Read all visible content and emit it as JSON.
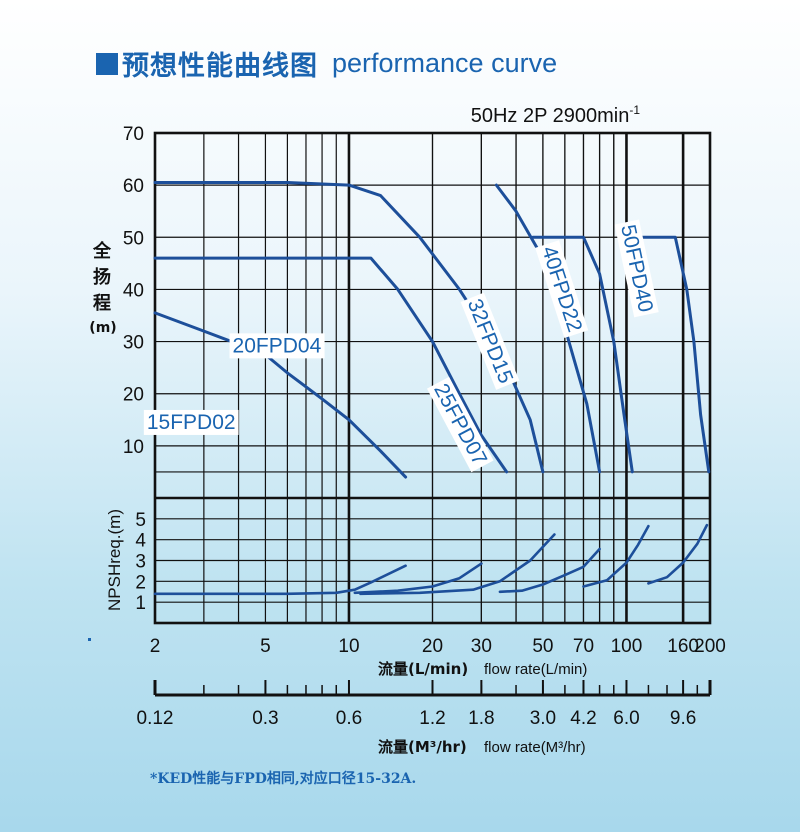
{
  "page": {
    "title_cn": "预想性能曲线图",
    "title_en": "performance curve",
    "footnote": "*KED性能与FPD相同,对应口径15-32A."
  },
  "chart_data": {
    "type": "line",
    "subtitle": "50Hz 2P 2900min",
    "subtitle_sup": "-1",
    "x_scale": "log",
    "xlim": [
      2,
      200
    ],
    "x_ticks": [
      2,
      5,
      10,
      20,
      30,
      50,
      70,
      100,
      160,
      200
    ],
    "xlabel_cn": "流量(L/min)",
    "xlabel_en": "flow rate(L/min)",
    "x2_ticks": [
      {
        "label": "0.12",
        "at": 2
      },
      {
        "label": "0.3",
        "at": 5
      },
      {
        "label": "0.6",
        "at": 10
      },
      {
        "label": "1.2",
        "at": 20
      },
      {
        "label": "1.8",
        "at": 30
      },
      {
        "label": "3.0",
        "at": 50
      },
      {
        "label": "4.2",
        "at": 70
      },
      {
        "label": "6.0",
        "at": 100
      },
      {
        "label": "9.6",
        "at": 160
      }
    ],
    "x2label_cn": "流量(M³/hr)",
    "x2label_en": "flow rate(M³/hr)",
    "head": {
      "ylabel_chars": [
        "全",
        "扬",
        "程"
      ],
      "yunit": "(m)",
      "ylim": [
        0,
        70
      ],
      "y_ticks": [
        10,
        20,
        30,
        40,
        50,
        60,
        70
      ],
      "series": [
        {
          "name": "15FPD02",
          "label_at": [
            2.7,
            14.3
          ],
          "label_rot": 0,
          "points": [
            [
              2,
              35.5
            ],
            [
              3,
              32
            ],
            [
              4,
              29.5
            ],
            [
              5,
              27.5
            ],
            [
              6,
              24
            ],
            [
              8,
              19
            ],
            [
              10,
              15
            ],
            [
              13,
              9
            ],
            [
              16,
              4
            ]
          ]
        },
        {
          "name": "20FPD04",
          "label_at": [
            5.5,
            29
          ],
          "label_rot": 0,
          "points": [
            [
              2,
              46
            ],
            [
              6,
              46
            ],
            [
              10,
              46
            ],
            [
              12,
              46
            ],
            [
              15,
              40
            ],
            [
              20,
              30
            ],
            [
              25,
              20
            ],
            [
              30,
              12
            ],
            [
              37,
              5
            ]
          ]
        },
        {
          "name": "25FPD07",
          "label_at": [
            25,
            14
          ],
          "label_rot": 62,
          "points": [
            [
              2,
              60.5
            ],
            [
              6,
              60.5
            ],
            [
              10,
              60
            ],
            [
              13,
              58
            ],
            [
              18,
              50
            ],
            [
              25,
              40
            ],
            [
              35,
              28
            ],
            [
              45,
              15
            ],
            [
              50,
              5
            ]
          ]
        },
        {
          "name": "32FPD15",
          "label_at": [
            32,
            30
          ],
          "label_rot": 68,
          "points": [
            [
              34,
              60
            ],
            [
              40,
              55
            ],
            [
              50,
              46
            ],
            [
              55,
              40
            ],
            [
              62,
              30
            ],
            [
              72,
              18
            ],
            [
              80,
              5
            ]
          ]
        },
        {
          "name": "40FPD22",
          "label_at": [
            58,
            40
          ],
          "label_rot": 72,
          "points": [
            [
              46,
              50
            ],
            [
              60,
              50
            ],
            [
              70,
              50
            ],
            [
              80,
              43
            ],
            [
              90,
              30
            ],
            [
              98,
              16
            ],
            [
              105,
              5
            ]
          ]
        },
        {
          "name": "50FPD40",
          "label_at": [
            108,
            44
          ],
          "label_rot": 78,
          "points": [
            [
              100,
              50
            ],
            [
              130,
              50
            ],
            [
              150,
              50
            ],
            [
              165,
              40
            ],
            [
              175,
              30
            ],
            [
              185,
              16
            ],
            [
              198,
              5
            ]
          ]
        }
      ]
    },
    "npsh": {
      "ylabel": "NPSHreq.(m)",
      "ylim": [
        0,
        6
      ],
      "y_ticks": [
        1,
        2,
        3,
        4,
        5
      ],
      "series": [
        {
          "name": "15FPD02",
          "points": [
            [
              2,
              1.4
            ],
            [
              6,
              1.4
            ],
            [
              9,
              1.45
            ],
            [
              10.5,
              1.6
            ],
            [
              12,
              1.95
            ],
            [
              16,
              2.75
            ]
          ]
        },
        {
          "name": "20FPD04",
          "points": [
            [
              10.5,
              1.45
            ],
            [
              15,
              1.55
            ],
            [
              20,
              1.75
            ],
            [
              25,
              2.15
            ],
            [
              30,
              2.85
            ]
          ]
        },
        {
          "name": "25FPD07",
          "points": [
            [
              11,
              1.4
            ],
            [
              18,
              1.45
            ],
            [
              28,
              1.6
            ],
            [
              35,
              2.0
            ],
            [
              45,
              3.0
            ],
            [
              55,
              4.25
            ]
          ]
        },
        {
          "name": "32FPD15",
          "points": [
            [
              35,
              1.5
            ],
            [
              42,
              1.55
            ],
            [
              50,
              1.85
            ],
            [
              60,
              2.3
            ],
            [
              70,
              2.7
            ],
            [
              80,
              3.55
            ]
          ]
        },
        {
          "name": "40FPD22",
          "points": [
            [
              70,
              1.75
            ],
            [
              85,
              2.05
            ],
            [
              100,
              2.9
            ],
            [
              110,
              3.75
            ],
            [
              120,
              4.65
            ]
          ]
        },
        {
          "name": "50FPD40",
          "points": [
            [
              120,
              1.9
            ],
            [
              140,
              2.2
            ],
            [
              160,
              2.9
            ],
            [
              180,
              3.8
            ],
            [
              195,
              4.7
            ]
          ]
        }
      ]
    },
    "colors": {
      "curve": "#1d4f9a",
      "label_text": "#1a64b0",
      "grid": "#111111"
    }
  }
}
